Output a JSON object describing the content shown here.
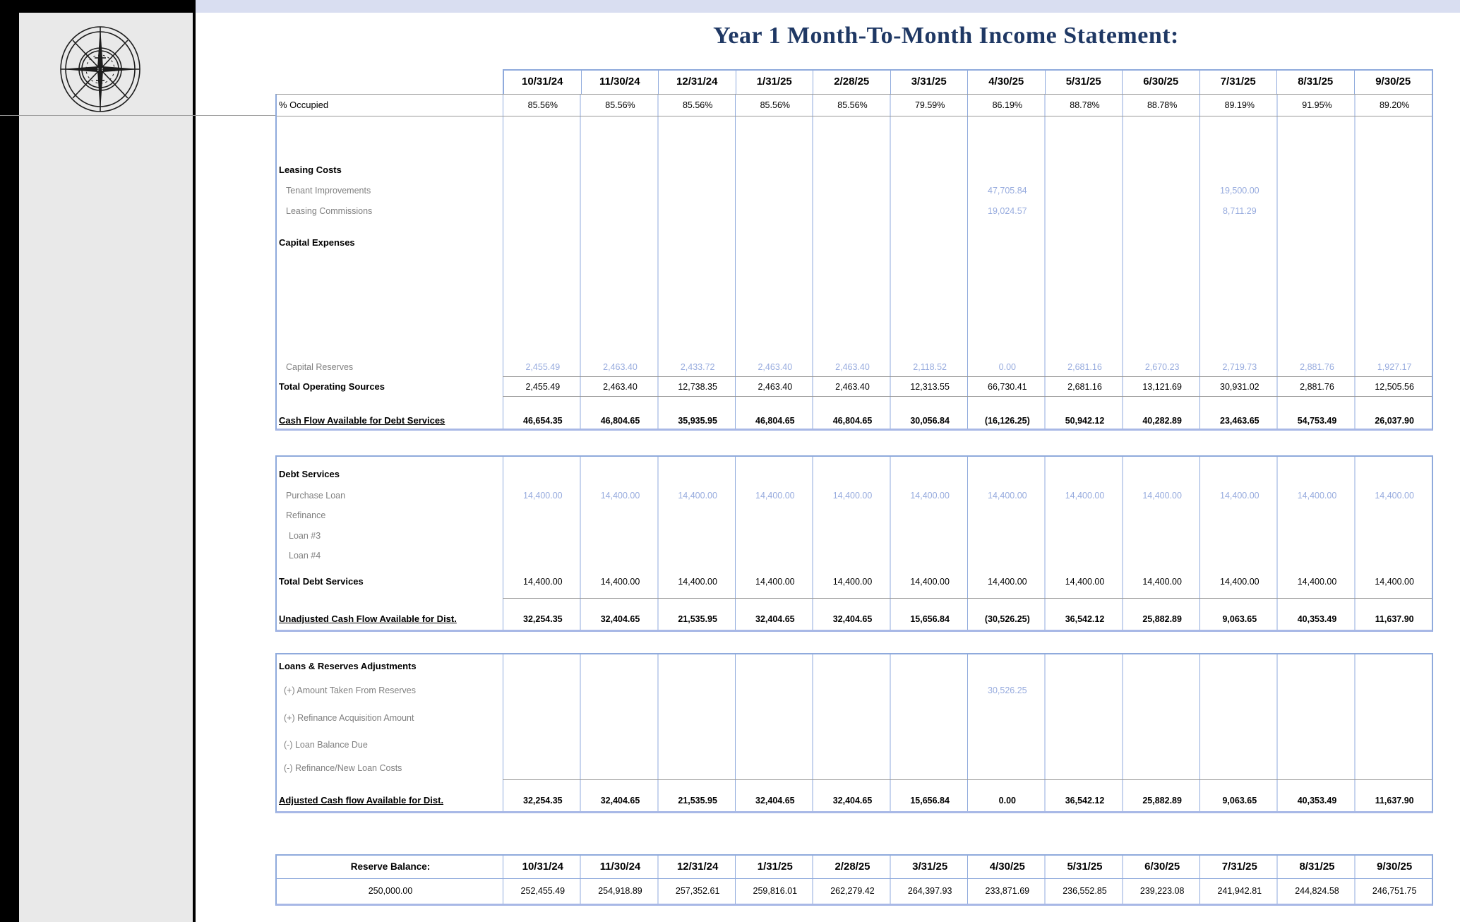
{
  "title": "Year 1 Month-To-Month Income Statement:",
  "dates": [
    "10/31/24",
    "11/30/24",
    "12/31/24",
    "1/31/25",
    "2/28/25",
    "3/31/25",
    "4/30/25",
    "5/31/25",
    "6/30/25",
    "7/31/25",
    "8/31/25",
    "9/30/25"
  ],
  "occupied": {
    "label": "% Occupied",
    "values": [
      "85.56%",
      "85.56%",
      "85.56%",
      "85.56%",
      "85.56%",
      "79.59%",
      "86.19%",
      "88.78%",
      "88.78%",
      "89.19%",
      "91.95%",
      "89.20%"
    ]
  },
  "operating": {
    "leasing_costs_header": "Leasing Costs",
    "tenant_improvements": {
      "label": "Tenant Improvements",
      "values": [
        "",
        "",
        "",
        "",
        "",
        "",
        "47,705.84",
        "",
        "",
        "19,500.00",
        "",
        ""
      ]
    },
    "leasing_commissions": {
      "label": "Leasing Commissions",
      "values": [
        "",
        "",
        "",
        "",
        "",
        "",
        "19,024.57",
        "",
        "",
        "8,711.29",
        "",
        ""
      ]
    },
    "capital_expenses_header": "Capital Expenses",
    "capital_reserves": {
      "label": "Capital Reserves",
      "values": [
        "2,455.49",
        "2,463.40",
        "2,433.72",
        "2,463.40",
        "2,463.40",
        "2,118.52",
        "0.00",
        "2,681.16",
        "2,670.23",
        "2,719.73",
        "2,881.76",
        "1,927.17"
      ]
    },
    "total_operating_sources": {
      "label": "Total Operating Sources",
      "values": [
        "2,455.49",
        "2,463.40",
        "12,738.35",
        "2,463.40",
        "2,463.40",
        "12,313.55",
        "66,730.41",
        "2,681.16",
        "13,121.69",
        "30,931.02",
        "2,881.76",
        "12,505.56"
      ]
    },
    "cash_flow_available": {
      "label": "Cash Flow Available for Debt Services",
      "values": [
        "46,654.35",
        "46,804.65",
        "35,935.95",
        "46,804.65",
        "46,804.65",
        "30,056.84",
        "(16,126.25)",
        "50,942.12",
        "40,282.89",
        "23,463.65",
        "54,753.49",
        "26,037.90"
      ]
    }
  },
  "debt": {
    "header": "Debt Services",
    "purchase_loan": {
      "label": "Purchase Loan",
      "values": [
        "14,400.00",
        "14,400.00",
        "14,400.00",
        "14,400.00",
        "14,400.00",
        "14,400.00",
        "14,400.00",
        "14,400.00",
        "14,400.00",
        "14,400.00",
        "14,400.00",
        "14,400.00"
      ]
    },
    "refinance": {
      "label": "Refinance"
    },
    "loan3": {
      "label": "Loan #3"
    },
    "loan4": {
      "label": "Loan #4"
    },
    "total_debt_services": {
      "label": "Total Debt Services",
      "values": [
        "14,400.00",
        "14,400.00",
        "14,400.00",
        "14,400.00",
        "14,400.00",
        "14,400.00",
        "14,400.00",
        "14,400.00",
        "14,400.00",
        "14,400.00",
        "14,400.00",
        "14,400.00"
      ]
    },
    "unadjusted": {
      "label": "Unadjusted Cash Flow Available for Dist.",
      "values": [
        "32,254.35",
        "32,404.65",
        "21,535.95",
        "32,404.65",
        "32,404.65",
        "15,656.84",
        "(30,526.25)",
        "36,542.12",
        "25,882.89",
        "9,063.65",
        "40,353.49",
        "11,637.90"
      ]
    }
  },
  "adjustments": {
    "header": "Loans & Reserves Adjustments",
    "amount_from_reserves": {
      "label": "(+) Amount Taken From Reserves",
      "values": [
        "",
        "",
        "",
        "",
        "",
        "",
        "30,526.25",
        "",
        "",
        "",
        "",
        ""
      ]
    },
    "refinance_acquisition": {
      "label": "(+) Refinance Acquisition Amount"
    },
    "loan_balance_due": {
      "label": "(-) Loan Balance Due"
    },
    "refinance_new_loan_costs": {
      "label": "(-) Refinance/New Loan Costs"
    },
    "adjusted": {
      "label": "Adjusted Cash flow Available for Dist.",
      "values": [
        "32,254.35",
        "32,404.65",
        "21,535.95",
        "32,404.65",
        "32,404.65",
        "15,656.84",
        "0.00",
        "36,542.12",
        "25,882.89",
        "9,063.65",
        "40,353.49",
        "11,637.90"
      ]
    }
  },
  "reserve": {
    "header_label": "Reserve Balance:",
    "opening_balance": "250,000.00",
    "values": [
      "252,455.49",
      "254,918.89",
      "257,352.61",
      "259,816.01",
      "262,279.42",
      "264,397.93",
      "233,871.69",
      "236,552.85",
      "239,223.08",
      "241,942.81",
      "244,824.58",
      "246,751.75"
    ]
  },
  "colors": {
    "accent_border": "#8FAADC",
    "thick_border": "#A8B8E6",
    "value_blue": "#97ABDE",
    "label_gray": "#7F7F7F",
    "title_navy": "#1F3864",
    "top_bar": "#D9DEF1",
    "sidebar_gray": "#E9E9E9"
  }
}
